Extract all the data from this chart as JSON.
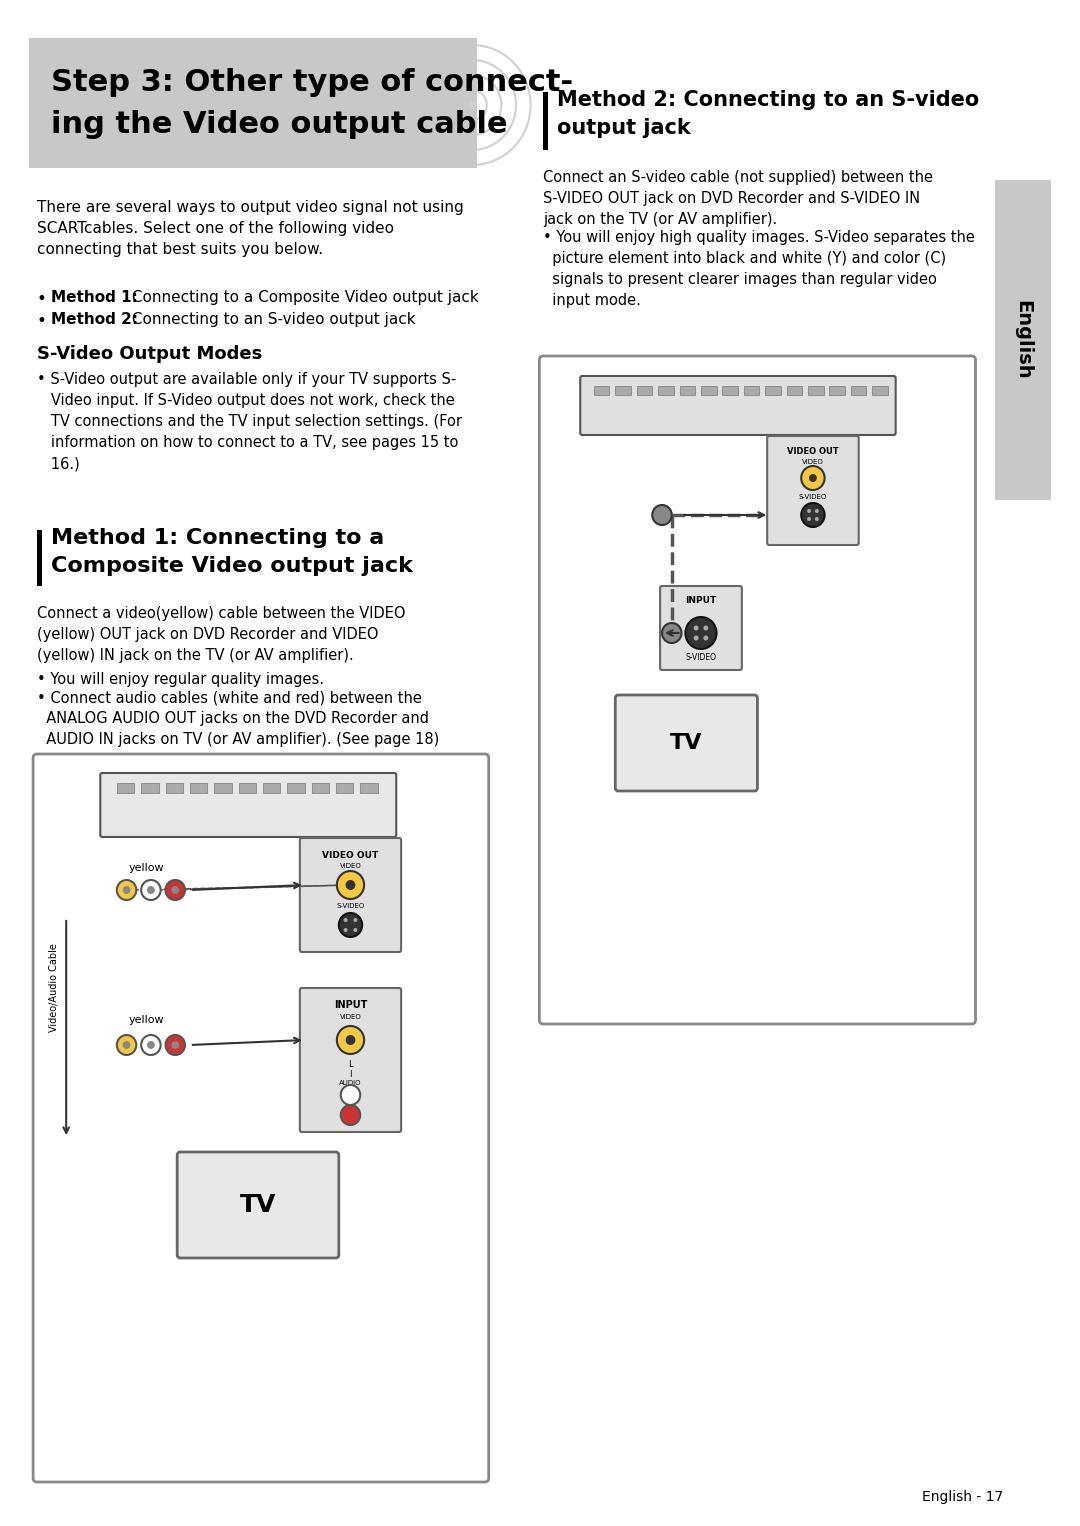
{
  "page_bg": "#ffffff",
  "header_bg": "#c8c8c8",
  "header_text": "Step 3: Other type of connect-\ning the Video output cable",
  "header_text_color": "#000000",
  "right_tab_bg": "#c8c8c8",
  "right_tab_text": "English",
  "body_intro": "There are several ways to output video signal not using\nSCARTcables. Select one of the following video\nconnecting that best suits you below.",
  "bullet1_bold": "Method 1:",
  "bullet1_rest": " Connecting to a Composite Video output jack",
  "bullet2_bold": "Method 2:",
  "bullet2_rest": " Connecting to an S-video output jack",
  "svideo_heading": "S-Video Output Modes",
  "svideo_body": "S-Video output are available only if your TV supports S-\nVideo input. If S-Video output does not work, check the\nTV connections and the TV input selection settings. (For\ninformation on how to connect to a TV, see pages 15 to\n16.)",
  "method1_heading1": "Method 1: Connecting to a",
  "method1_heading2": "Composite Video output jack",
  "method1_body": "Connect a video(yellow) cable between the VIDEO\n(yellow) OUT jack on DVD Recorder and VIDEO\n(yellow) IN jack on the TV (or AV amplifier).",
  "method1_bullet1": "You will enjoy regular quality images.",
  "method1_bullet2": "Connect audio cables (white and red) between the\nANALOG AUDIO OUT jacks on the DVD Recorder and\nAUDIO IN jacks on TV (or AV amplifier). (See page 18)",
  "method2_heading1": "Method 2: Connecting to an S-video",
  "method2_heading2": "output jack",
  "method2_body": "Connect an S-video cable (not supplied) between the\nS-VIDEO OUT jack on DVD Recorder and S-VIDEO IN\njack on the TV (or AV amplifier).",
  "method2_bullet1": "You will enjoy high quality images. S-Video separates the\npicture element into black and white (Y) and color (C)\nsignals to present clearer images than regular video\ninput mode.",
  "footer_text": "English - 17",
  "accent_bar_color": "#000000",
  "diagram_border": "#888888",
  "diagram_bg": "#ffffff"
}
